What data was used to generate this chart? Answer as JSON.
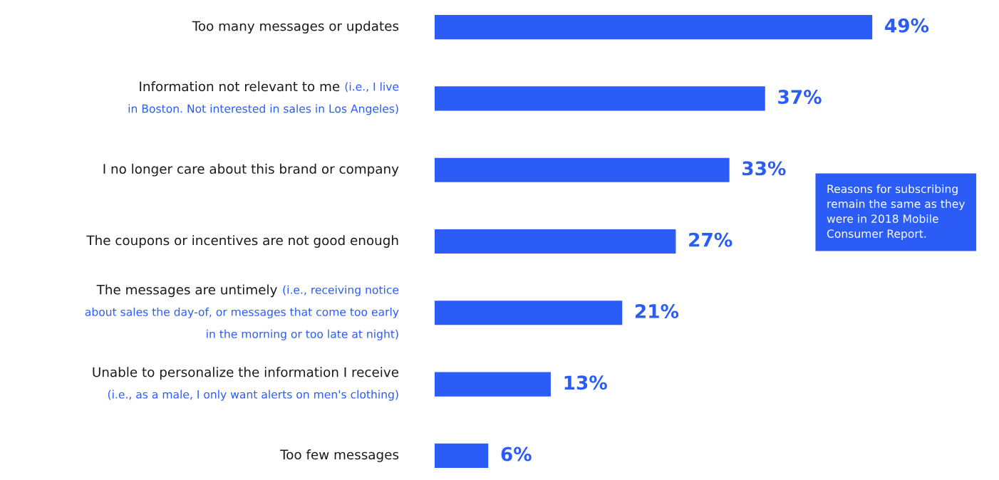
{
  "chart_data": {
    "type": "bar",
    "orientation": "horizontal",
    "categories": [
      "Too many messages or updates",
      "Information not relevant to me (i.e., I live\nin Boston. Not interested in sales in Los Angeles)",
      "I no longer care about this brand or company",
      "The coupons or incentives are not good enough",
      "The messages are untimely (i.e., receiving notice\nabout sales the day-of, or messages that come too early\nin the morning or too late at night)",
      "Unable to personalize the information I receive\n(i.e., as a male, I only want alerts on men's clothing)",
      "Too few messages"
    ],
    "values": [
      49,
      37,
      33,
      27,
      21,
      13,
      6
    ],
    "value_labels": [
      "49%",
      "37%",
      "33%",
      "27%",
      "21%",
      "13%",
      "6%"
    ],
    "color": "#2b5cf6",
    "annotations": [
      "Reasons for subscribing\nremain the same as they\nwere in 2018 Mobile\nConsumer Report."
    ],
    "legend": false
  }
}
